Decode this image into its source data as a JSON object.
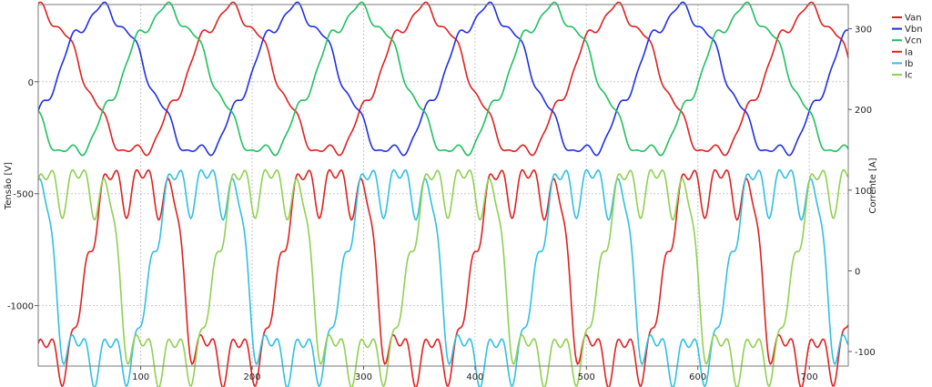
{
  "chart_data": {
    "type": "line",
    "xlabel": "",
    "ylabel_left": "Tensão [V]",
    "ylabel_right": "Corrente [A]",
    "xlim": [
      8,
      735
    ],
    "ylim_left": [
      -1270,
      345
    ],
    "ylim_right": [
      -118,
      330
    ],
    "x_ticks": [
      100,
      200,
      300,
      400,
      500,
      600,
      700
    ],
    "y_left_ticks": [
      0,
      -500,
      -1000
    ],
    "y_right_ticks": [
      300,
      200,
      100,
      0,
      -100
    ],
    "grid": true,
    "legend_position": "top-right",
    "sampling": {
      "x_start": 8,
      "x_step": 1,
      "points": 728
    },
    "series": [
      {
        "name": "Van",
        "axis": "left",
        "color": "#e02020",
        "type": "voltage",
        "phase_deg": 0
      },
      {
        "name": "Vbn",
        "axis": "left",
        "color": "#2030e0",
        "type": "voltage",
        "phase_deg": -120
      },
      {
        "name": "Vcn",
        "axis": "left",
        "color": "#20c060",
        "type": "voltage",
        "phase_deg": 120
      },
      {
        "name": "Ia",
        "axis": "right",
        "color": "#e02020",
        "type": "current",
        "phase_deg": 0
      },
      {
        "name": "Ib",
        "axis": "right",
        "color": "#30c0e0",
        "type": "current",
        "phase_deg": -120
      },
      {
        "name": "Ic",
        "axis": "right",
        "color": "#90d050",
        "type": "current",
        "phase_deg": 120
      }
    ],
    "model": {
      "period": 173,
      "voltage_amplitude": 320,
      "voltage_ripple": 30,
      "current_offset": 0,
      "current_amplitude": 105,
      "current_ripple": 25
    }
  }
}
